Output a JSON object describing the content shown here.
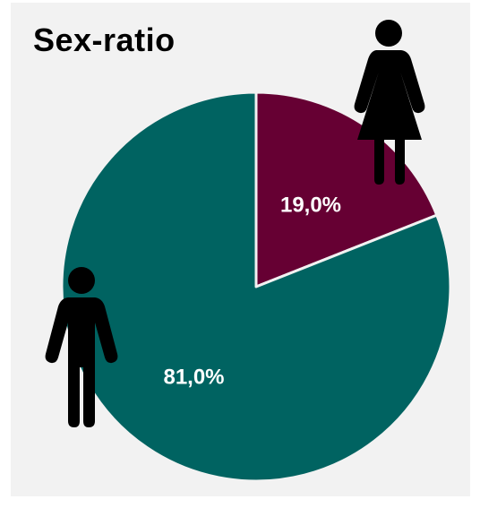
{
  "chart_data": {
    "type": "pie",
    "title": "Sex-ratio",
    "slices": [
      {
        "value": 19.0,
        "label": "19,0%",
        "color": "#660033",
        "icon": "female-icon"
      },
      {
        "value": 81.0,
        "label": "81,0%",
        "color": "#006361",
        "icon": "male-icon"
      }
    ],
    "start_angle_deg": 0,
    "direction": "clockwise"
  },
  "colors": {
    "background": "#f2f2f2",
    "slice_border": "#f2f2f2"
  }
}
